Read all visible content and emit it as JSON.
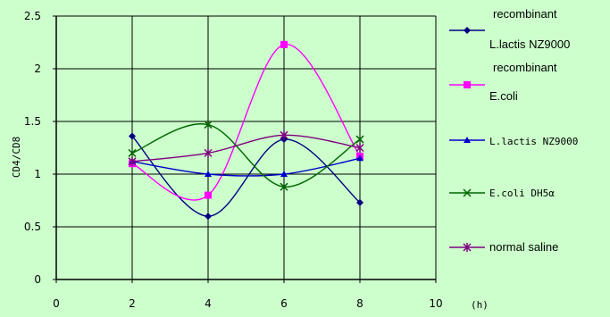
{
  "chart_data": {
    "type": "line",
    "xlabel": "(h)",
    "ylabel": "CD4/CD8",
    "xlim": [
      0,
      10
    ],
    "ylim": [
      0,
      2.5
    ],
    "x_ticks": [
      "0",
      "2",
      "4",
      "6",
      "8",
      "10"
    ],
    "y_ticks": [
      "0",
      "0.5",
      "1",
      "1.5",
      "2",
      "2.5"
    ],
    "grid": "vertical and horizontal major gridlines",
    "legend_position": "right",
    "plot_background": "#ccffcc",
    "x": [
      2,
      4,
      6,
      8
    ],
    "series": [
      {
        "name": "recombinant L.lactis NZ9000",
        "legend_lines": [
          "recombinant",
          "L.lactis NZ9000"
        ],
        "marker": "diamond",
        "color": "#000080",
        "values": [
          1.36,
          0.6,
          1.33,
          0.73
        ]
      },
      {
        "name": "recombinant E.coli",
        "legend_lines": [
          "recombinant",
          "E.coli"
        ],
        "marker": "square",
        "color": "#ff00ff",
        "values": [
          1.1,
          0.8,
          2.23,
          1.17
        ]
      },
      {
        "name": "L.lactis NZ9000",
        "legend_lines": [
          "L.lactis NZ9000"
        ],
        "marker": "triangle",
        "color": "#0000cc",
        "values": [
          1.12,
          1.0,
          1.0,
          1.15
        ]
      },
      {
        "name": "E.coli DH5α",
        "legend_lines": [
          "E.coli DH5α"
        ],
        "marker": "x",
        "color": "#006600",
        "values": [
          1.2,
          1.47,
          0.88,
          1.33
        ]
      },
      {
        "name": "normal saline",
        "legend_lines": [
          "normal saline"
        ],
        "marker": "star",
        "color": "#800080",
        "values": [
          1.12,
          1.2,
          1.37,
          1.25
        ]
      }
    ]
  }
}
